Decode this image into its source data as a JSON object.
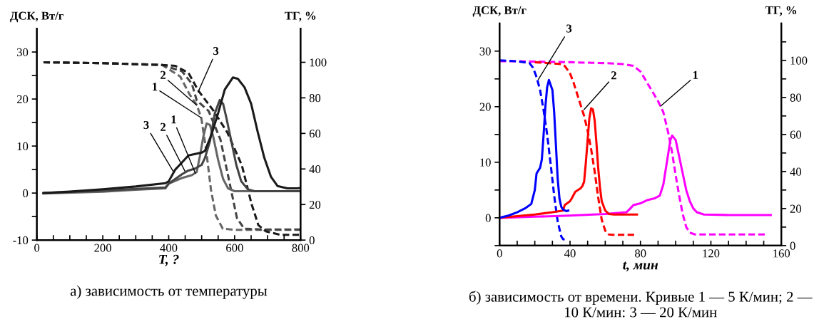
{
  "chart_data": [
    {
      "type": "line",
      "xlabel": "T, ?",
      "ylabel": "ДСК, Вт/г",
      "y2label": "ТГ, %",
      "xlim": [
        0,
        800
      ],
      "xticks": [
        0,
        {
          "value": 50,
          "label": null
        },
        {
          "value": 100,
          "label": null
        },
        {
          "value": 150,
          "label": null
        },
        200,
        {
          "value": 250,
          "label": null
        },
        {
          "value": 300,
          "label": null
        },
        {
          "value": 350,
          "label": null
        },
        400,
        {
          "value": 450,
          "label": null
        },
        {
          "value": 500,
          "label": null
        },
        {
          "value": 550,
          "label": null
        },
        600,
        {
          "value": 650,
          "label": null
        },
        {
          "value": 700,
          "label": null
        },
        {
          "value": 750,
          "label": null
        },
        800
      ],
      "ylim": [
        -10,
        35
      ],
      "yticks": [
        -10,
        {
          "value": -5,
          "label": null
        },
        0,
        {
          "value": 5,
          "label": null
        },
        10,
        {
          "value": 15,
          "label": null
        },
        20,
        {
          "value": 25,
          "label": null
        },
        30
      ],
      "y2lim": [
        0,
        119
      ],
      "y2ticks": [
        0,
        20,
        40,
        60,
        80,
        100
      ],
      "series": [
        {
          "color": "#666666",
          "line_style": "solid",
          "axis": "y",
          "x": [
            20,
            200,
            300,
            390,
            400,
            440,
            470,
            485,
            495,
            505,
            515,
            525,
            535,
            550,
            565,
            580,
            600,
            800
          ],
          "values": [
            -0.1,
            0.3,
            0.7,
            1,
            2,
            3.2,
            3.8,
            4.5,
            8,
            12,
            14.8,
            14.5,
            12,
            7,
            3,
            1,
            0.4,
            0.4
          ]
        },
        {
          "color": "#444444",
          "line_style": "solid",
          "axis": "y",
          "x": [
            20,
            200,
            300,
            390,
            400,
            440,
            460,
            480,
            500,
            510,
            525,
            540,
            555,
            565,
            575,
            590,
            605,
            620,
            640,
            660,
            800
          ],
          "values": [
            0,
            0.5,
            0.9,
            1.2,
            2,
            4,
            4.8,
            5.2,
            6,
            7.5,
            11,
            17,
            19.8,
            19,
            16,
            11,
            6,
            2.5,
            0.8,
            0.4,
            0.4
          ]
        },
        {
          "color": "#1a1a1a",
          "line_style": "solid",
          "axis": "y",
          "x": [
            20,
            100,
            200,
            300,
            390,
            400,
            420,
            440,
            460,
            480,
            500,
            510,
            530,
            550,
            570,
            595,
            610,
            630,
            650,
            670,
            690,
            710,
            730,
            760,
            790,
            800
          ],
          "values": [
            0,
            0.3,
            0.8,
            1.4,
            2.1,
            2.5,
            5,
            6.5,
            8,
            8.3,
            8.6,
            9,
            12.5,
            17,
            22,
            24.6,
            24.3,
            22.5,
            19,
            13,
            7.5,
            3.5,
            1.5,
            1,
            1,
            1.1
          ]
        },
        {
          "color": "#666666",
          "line_style": "dashed",
          "axis": "y2",
          "x": [
            20,
            200,
            380,
            435,
            463,
            485,
            499,
            514,
            528,
            543,
            564,
            600,
            800
          ],
          "values": [
            100,
            99.5,
            98.5,
            92,
            82,
            76,
            68.6,
            50,
            28.5,
            13.8,
            6.4,
            5.8,
            5.8
          ]
        },
        {
          "color": "#444444",
          "line_style": "dashed",
          "axis": "y2",
          "x": [
            20,
            200,
            380,
            440,
            470,
            485,
            521,
            557,
            586,
            607,
            629,
            680,
            800
          ],
          "values": [
            100,
            99.5,
            98.5,
            95,
            88,
            78.6,
            72.6,
            56.5,
            31,
            12.4,
            6.4,
            6,
            6
          ]
        },
        {
          "color": "#1a1a1a",
          "line_style": "dashed",
          "axis": "y2",
          "x": [
            20,
            200,
            380,
            420,
            460,
            490,
            535,
            578,
            622,
            651,
            672,
            694,
            737,
            800
          ],
          "values": [
            100,
            99.5,
            98.5,
            98,
            94,
            84,
            73,
            60.5,
            42,
            20.5,
            8.4,
            5,
            3,
            3
          ]
        }
      ],
      "annotations": [
        {
          "text": "3",
          "x": 413,
          "y": 4.7
        },
        {
          "text": "2",
          "x": 449,
          "y": 4.7
        },
        {
          "text": "1",
          "x": 481,
          "y": 4.2
        },
        {
          "text": "3",
          "x": 489,
          "y": 21.5
        },
        {
          "text": "2",
          "x": 485,
          "y": 18.7
        },
        {
          "text": "1",
          "x": 499,
          "y": 16
        },
        "а) зависимость от температуры"
      ]
    },
    {
      "type": "line",
      "xlabel": "t, мин",
      "ylabel": "ДСК, Вт/г",
      "y2label": "ТГ, %",
      "xlim": [
        0,
        160
      ],
      "xticks": [
        0,
        {
          "value": 10,
          "label": null
        },
        {
          "value": 20,
          "label": null
        },
        {
          "value": 30,
          "label": null
        },
        40,
        {
          "value": 50,
          "label": null
        },
        {
          "value": 60,
          "label": null
        },
        {
          "value": 70,
          "label": null
        },
        80,
        {
          "value": 90,
          "label": null
        },
        {
          "value": 100,
          "label": null
        },
        {
          "value": 110,
          "label": null
        },
        120,
        {
          "value": 130,
          "label": null
        },
        {
          "value": 140,
          "label": null
        },
        {
          "value": 150,
          "label": null
        },
        160
      ],
      "ylim": [
        -5,
        35
      ],
      "yticks": [
        {
          "value": -5,
          "label": null
        },
        0,
        {
          "value": 5,
          "label": null
        },
        10,
        {
          "value": 15,
          "label": null
        },
        20,
        {
          "value": 25,
          "label": null
        },
        30
      ],
      "y2lim": [
        0,
        120
      ],
      "y2ticks": [
        0,
        {
          "value": 10,
          "label": null
        },
        20,
        {
          "value": 30,
          "label": null
        },
        40,
        {
          "value": 50,
          "label": null
        },
        60,
        {
          "value": 70,
          "label": null
        },
        80,
        {
          "value": 90,
          "label": null
        },
        100,
        {
          "value": 110,
          "label": null
        }
      ],
      "series": [
        {
          "color": "#ff00ff",
          "line_style": "solid",
          "axis": "y",
          "x": [
            0,
            20,
            40,
            60,
            72,
            74,
            76,
            80,
            84,
            88,
            91,
            93,
            95,
            97,
            98,
            100,
            102,
            104,
            106,
            108,
            110,
            112,
            116,
            130,
            154
          ],
          "values": [
            0,
            0.2,
            0.4,
            0.7,
            1,
            1.6,
            2.3,
            2.6,
            3.2,
            3.5,
            4,
            6,
            10,
            14,
            14.8,
            14,
            11,
            8,
            5,
            3,
            1.7,
            1,
            0.6,
            0.5,
            0.5
          ]
        },
        {
          "color": "#ff0000",
          "line_style": "solid",
          "axis": "y",
          "x": [
            0,
            10,
            20,
            30,
            36,
            37,
            40,
            41,
            43,
            46,
            47,
            48,
            49,
            50,
            51,
            52,
            53,
            54,
            55,
            56,
            57,
            58,
            60,
            62,
            65,
            78
          ],
          "values": [
            0,
            0.3,
            0.6,
            1,
            1.3,
            2.3,
            3,
            3.5,
            4.7,
            5.3,
            5.7,
            6.5,
            10,
            14,
            18,
            19.7,
            19.5,
            17.5,
            13.5,
            9,
            5.5,
            3,
            1.3,
            0.7,
            0.6,
            0.6
          ]
        },
        {
          "color": "#0000ff",
          "line_style": "solid",
          "axis": "y",
          "x": [
            0,
            5,
            10,
            15,
            18,
            20,
            21,
            23,
            24,
            25,
            26,
            27,
            28,
            30,
            31,
            32,
            33,
            34,
            35,
            36,
            38,
            39
          ],
          "values": [
            0,
            0.4,
            1,
            1.8,
            2.5,
            5,
            8,
            9,
            10.5,
            15,
            20,
            23.5,
            24.8,
            23,
            19,
            13,
            7,
            3.5,
            2,
            1.5,
            1.2,
            1.3
          ]
        },
        {
          "color": "#ff00ff",
          "line_style": "dashed",
          "axis": "y2",
          "x": [
            0,
            10,
            40,
            60,
            70,
            76,
            80,
            85,
            90,
            93,
            96,
            98,
            100,
            102,
            104,
            106,
            108,
            111,
            130,
            152
          ],
          "values": [
            99.5,
            99.5,
            99,
            98.5,
            98,
            97,
            94,
            86,
            78,
            72,
            60,
            50,
            38,
            27,
            17,
            10,
            7,
            6,
            6,
            6
          ]
        },
        {
          "color": "#ff0000",
          "line_style": "dashed",
          "axis": "y2",
          "x": [
            20,
            35,
            37,
            40,
            42,
            44,
            46,
            48,
            50,
            52,
            54,
            56,
            58,
            60,
            62,
            64,
            78
          ],
          "values": [
            99,
            98,
            97,
            93,
            88,
            82,
            76,
            70,
            62,
            52,
            40,
            26,
            14,
            8,
            6,
            5.8,
            5.8
          ]
        },
        {
          "color": "#0000ff",
          "line_style": "dashed",
          "axis": "y2",
          "x": [
            0,
            10,
            17,
            19,
            21,
            23,
            25,
            27,
            29,
            31,
            33,
            35,
            36,
            37
          ],
          "values": [
            100,
            99.5,
            98.5,
            96,
            91,
            84,
            73,
            60,
            44,
            27,
            13,
            5,
            3.5,
            3.2
          ]
        }
      ],
      "annotations": [
        {
          "text": "3",
          "x": 22,
          "y": 24.9
        },
        {
          "text": "2",
          "x": 48,
          "y": 19.5
        },
        {
          "text": "1",
          "x": 91.5,
          "y": 20.1
        },
        "б) зависимость от времени. Кривые 1 — 5 К/мин; 2 — 10 К/мин: 3 — 20 К/мин"
      ]
    }
  ]
}
